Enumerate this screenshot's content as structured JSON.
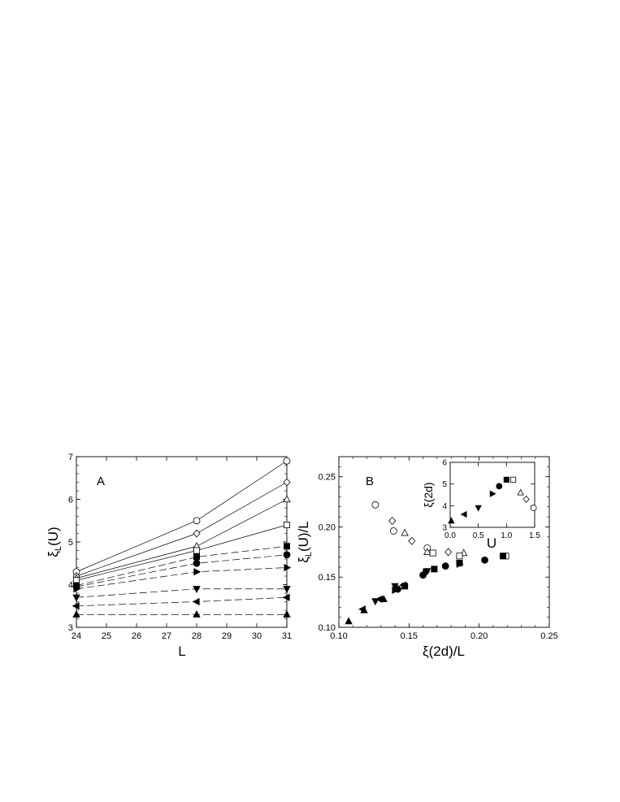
{
  "chart_data": [
    {
      "panel_label": "A",
      "type": "line",
      "xlabel": "L",
      "ylabel_main": "ξ",
      "ylabel_sub": "L",
      "ylabel_tail": "(U)",
      "xlim": [
        24,
        31
      ],
      "ylim": [
        3,
        7
      ],
      "xticks": [
        24,
        25,
        26,
        27,
        28,
        29,
        30,
        31
      ],
      "yticks": [
        3,
        4,
        5,
        6,
        7
      ],
      "x": [
        24,
        28,
        31
      ],
      "series": [
        {
          "marker": "circle",
          "fill": "open",
          "line": "solid",
          "values": [
            4.3,
            5.5,
            6.9
          ]
        },
        {
          "marker": "diamond",
          "fill": "open",
          "line": "solid",
          "values": [
            4.2,
            5.2,
            6.4
          ]
        },
        {
          "marker": "triangle-up",
          "fill": "open",
          "line": "solid",
          "values": [
            4.15,
            4.9,
            6.0
          ]
        },
        {
          "marker": "square",
          "fill": "open",
          "line": "solid",
          "values": [
            4.1,
            4.8,
            5.4
          ]
        },
        {
          "marker": "square",
          "fill": "filled",
          "line": "dashed",
          "values": [
            3.98,
            4.65,
            4.9
          ]
        },
        {
          "marker": "circle",
          "fill": "filled",
          "line": "dashed",
          "values": [
            3.95,
            4.5,
            4.7
          ]
        },
        {
          "marker": "triangle-right",
          "fill": "filled",
          "line": "dashed",
          "values": [
            3.9,
            4.3,
            4.4
          ]
        },
        {
          "marker": "triangle-down",
          "fill": "filled",
          "line": "dashed",
          "values": [
            3.7,
            3.9,
            3.9
          ]
        },
        {
          "marker": "triangle-left",
          "fill": "filled",
          "line": "dashed",
          "values": [
            3.5,
            3.6,
            3.7
          ]
        },
        {
          "marker": "triangle-up",
          "fill": "filled",
          "line": "dashed",
          "values": [
            3.3,
            3.3,
            3.3
          ]
        }
      ]
    },
    {
      "panel_label": "B",
      "type": "scatter",
      "xlabel": "ξ(2d)/L",
      "ylabel_main": "ξ",
      "ylabel_sub": "L",
      "ylabel_tail": "(U)/L",
      "xlim": [
        0.1,
        0.25
      ],
      "ylim": [
        0.1,
        0.27
      ],
      "xticks": [
        "0.10",
        "0.15",
        "0.20",
        "0.25"
      ],
      "yticks": [
        "0.10",
        "0.15",
        "0.20",
        "0.25"
      ],
      "points": [
        {
          "marker": "circle",
          "fill": "open",
          "x": 0.126,
          "y": 0.222
        },
        {
          "marker": "circle",
          "fill": "open",
          "x": 0.139,
          "y": 0.196
        },
        {
          "marker": "circle",
          "fill": "open",
          "x": 0.163,
          "y": 0.179
        },
        {
          "marker": "diamond",
          "fill": "open",
          "x": 0.138,
          "y": 0.206
        },
        {
          "marker": "diamond",
          "fill": "open",
          "x": 0.152,
          "y": 0.186
        },
        {
          "marker": "diamond",
          "fill": "open",
          "x": 0.178,
          "y": 0.175
        },
        {
          "marker": "triangle-up",
          "fill": "open",
          "x": 0.147,
          "y": 0.194
        },
        {
          "marker": "triangle-up",
          "fill": "open",
          "x": 0.163,
          "y": 0.175
        },
        {
          "marker": "triangle-up",
          "fill": "open",
          "x": 0.189,
          "y": 0.174
        },
        {
          "marker": "square",
          "fill": "open",
          "x": 0.167,
          "y": 0.174
        },
        {
          "marker": "square",
          "fill": "open",
          "x": 0.186,
          "y": 0.171
        },
        {
          "marker": "square",
          "fill": "open",
          "x": 0.219,
          "y": 0.171
        },
        {
          "marker": "square",
          "fill": "filled",
          "x": 0.147,
          "y": 0.141
        },
        {
          "marker": "square",
          "fill": "filled",
          "x": 0.168,
          "y": 0.158
        },
        {
          "marker": "square",
          "fill": "filled",
          "x": 0.186,
          "y": 0.164
        },
        {
          "marker": "square",
          "fill": "filled",
          "x": 0.217,
          "y": 0.171
        },
        {
          "marker": "circle",
          "fill": "filled",
          "x": 0.142,
          "y": 0.138
        },
        {
          "marker": "circle",
          "fill": "filled",
          "x": 0.16,
          "y": 0.152
        },
        {
          "marker": "circle",
          "fill": "filled",
          "x": 0.176,
          "y": 0.161
        },
        {
          "marker": "circle",
          "fill": "filled",
          "x": 0.204,
          "y": 0.167
        },
        {
          "marker": "triangle-right",
          "fill": "filled",
          "x": 0.14,
          "y": 0.137
        },
        {
          "marker": "triangle-right",
          "fill": "filled",
          "x": 0.162,
          "y": 0.155
        },
        {
          "marker": "triangle-right",
          "fill": "filled",
          "x": 0.186,
          "y": 0.163
        },
        {
          "marker": "triangle-down",
          "fill": "filled",
          "x": 0.126,
          "y": 0.126
        },
        {
          "marker": "triangle-down",
          "fill": "filled",
          "x": 0.14,
          "y": 0.141
        },
        {
          "marker": "triangle-down",
          "fill": "filled",
          "x": 0.163,
          "y": 0.156
        },
        {
          "marker": "triangle-left",
          "fill": "filled",
          "x": 0.117,
          "y": 0.118
        },
        {
          "marker": "triangle-left",
          "fill": "filled",
          "x": 0.129,
          "y": 0.128
        },
        {
          "marker": "triangle-left",
          "fill": "filled",
          "x": 0.146,
          "y": 0.142
        },
        {
          "marker": "triangle-up",
          "fill": "filled",
          "x": 0.107,
          "y": 0.106
        },
        {
          "marker": "triangle-up",
          "fill": "filled",
          "x": 0.118,
          "y": 0.117
        },
        {
          "marker": "triangle-up",
          "fill": "filled",
          "x": 0.132,
          "y": 0.128
        }
      ]
    },
    {
      "panel_label": "",
      "type": "scatter",
      "inset_of": "B",
      "xlabel": "U",
      "ylabel": "ξ(2d)",
      "xlim": [
        0.0,
        1.5
      ],
      "ylim": [
        3,
        6
      ],
      "xticks": [
        "0.0",
        "0.5",
        "1.0",
        "1.5"
      ],
      "yticks": [
        "3",
        "4",
        "5",
        "6"
      ],
      "points": [
        {
          "marker": "triangle-up",
          "fill": "filled",
          "x": 0.02,
          "y": 3.3
        },
        {
          "marker": "triangle-left",
          "fill": "filled",
          "x": 0.25,
          "y": 3.6
        },
        {
          "marker": "triangle-down",
          "fill": "filled",
          "x": 0.5,
          "y": 3.9
        },
        {
          "marker": "triangle-right",
          "fill": "filled",
          "x": 0.75,
          "y": 4.55
        },
        {
          "marker": "circle",
          "fill": "filled",
          "x": 0.87,
          "y": 4.9
        },
        {
          "marker": "square",
          "fill": "filled",
          "x": 1.0,
          "y": 5.2
        },
        {
          "marker": "square",
          "fill": "open",
          "x": 1.12,
          "y": 5.2
        },
        {
          "marker": "triangle-up",
          "fill": "open",
          "x": 1.25,
          "y": 4.6
        },
        {
          "marker": "diamond",
          "fill": "open",
          "x": 1.35,
          "y": 4.3
        },
        {
          "marker": "circle",
          "fill": "open",
          "x": 1.48,
          "y": 3.9
        }
      ]
    }
  ]
}
